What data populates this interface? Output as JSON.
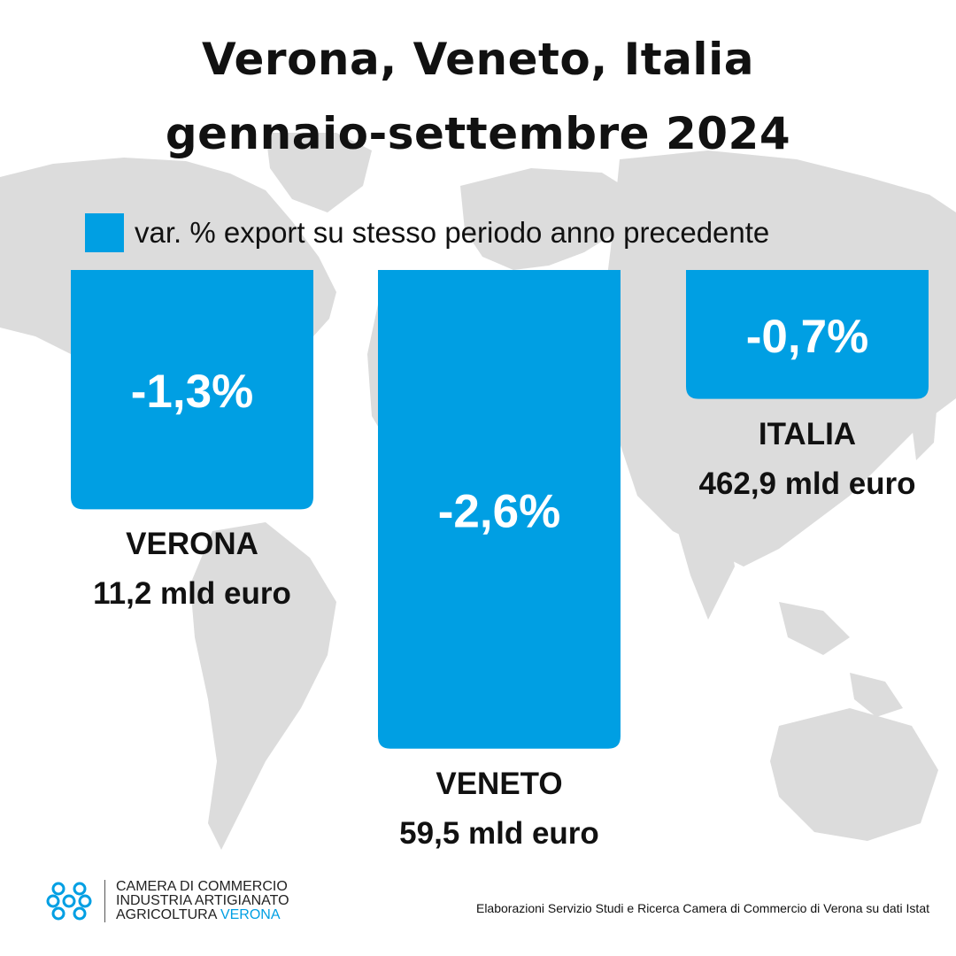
{
  "title_line1": "Verona, Veneto, Italia",
  "title_line2": "gennaio-settembre 2024",
  "legend_label": "var. % export su stesso periodo anno precedente",
  "bar_color": "#009fe3",
  "chart_data": {
    "type": "bar",
    "title": "Verona, Veneto, Italia gennaio-settembre 2024",
    "categories": [
      "VERONA",
      "VENETO",
      "ITALIA"
    ],
    "series": [
      {
        "name": "var. % export su stesso periodo anno precedente",
        "values": [
          -1.3,
          -2.6,
          -0.7
        ]
      }
    ],
    "value_labels": [
      "-1,3%",
      "-2,6%",
      "-0,7%"
    ],
    "export_totals": [
      "11,2 mld euro",
      "59,5 mld euro",
      "462,9 mld euro"
    ],
    "xlabel": "",
    "ylabel": "",
    "grid": false,
    "legend": "top-left"
  },
  "logo": {
    "line1": "CAMERA DI COMMERCIO",
    "line2": "INDUSTRIA ARTIGIANATO",
    "line3a": "AGRICOLTURA",
    "line3b": "VERONA"
  },
  "source": "Elaborazioni Servizio Studi e Ricerca Camera di Commercio di Verona su dati Istat"
}
